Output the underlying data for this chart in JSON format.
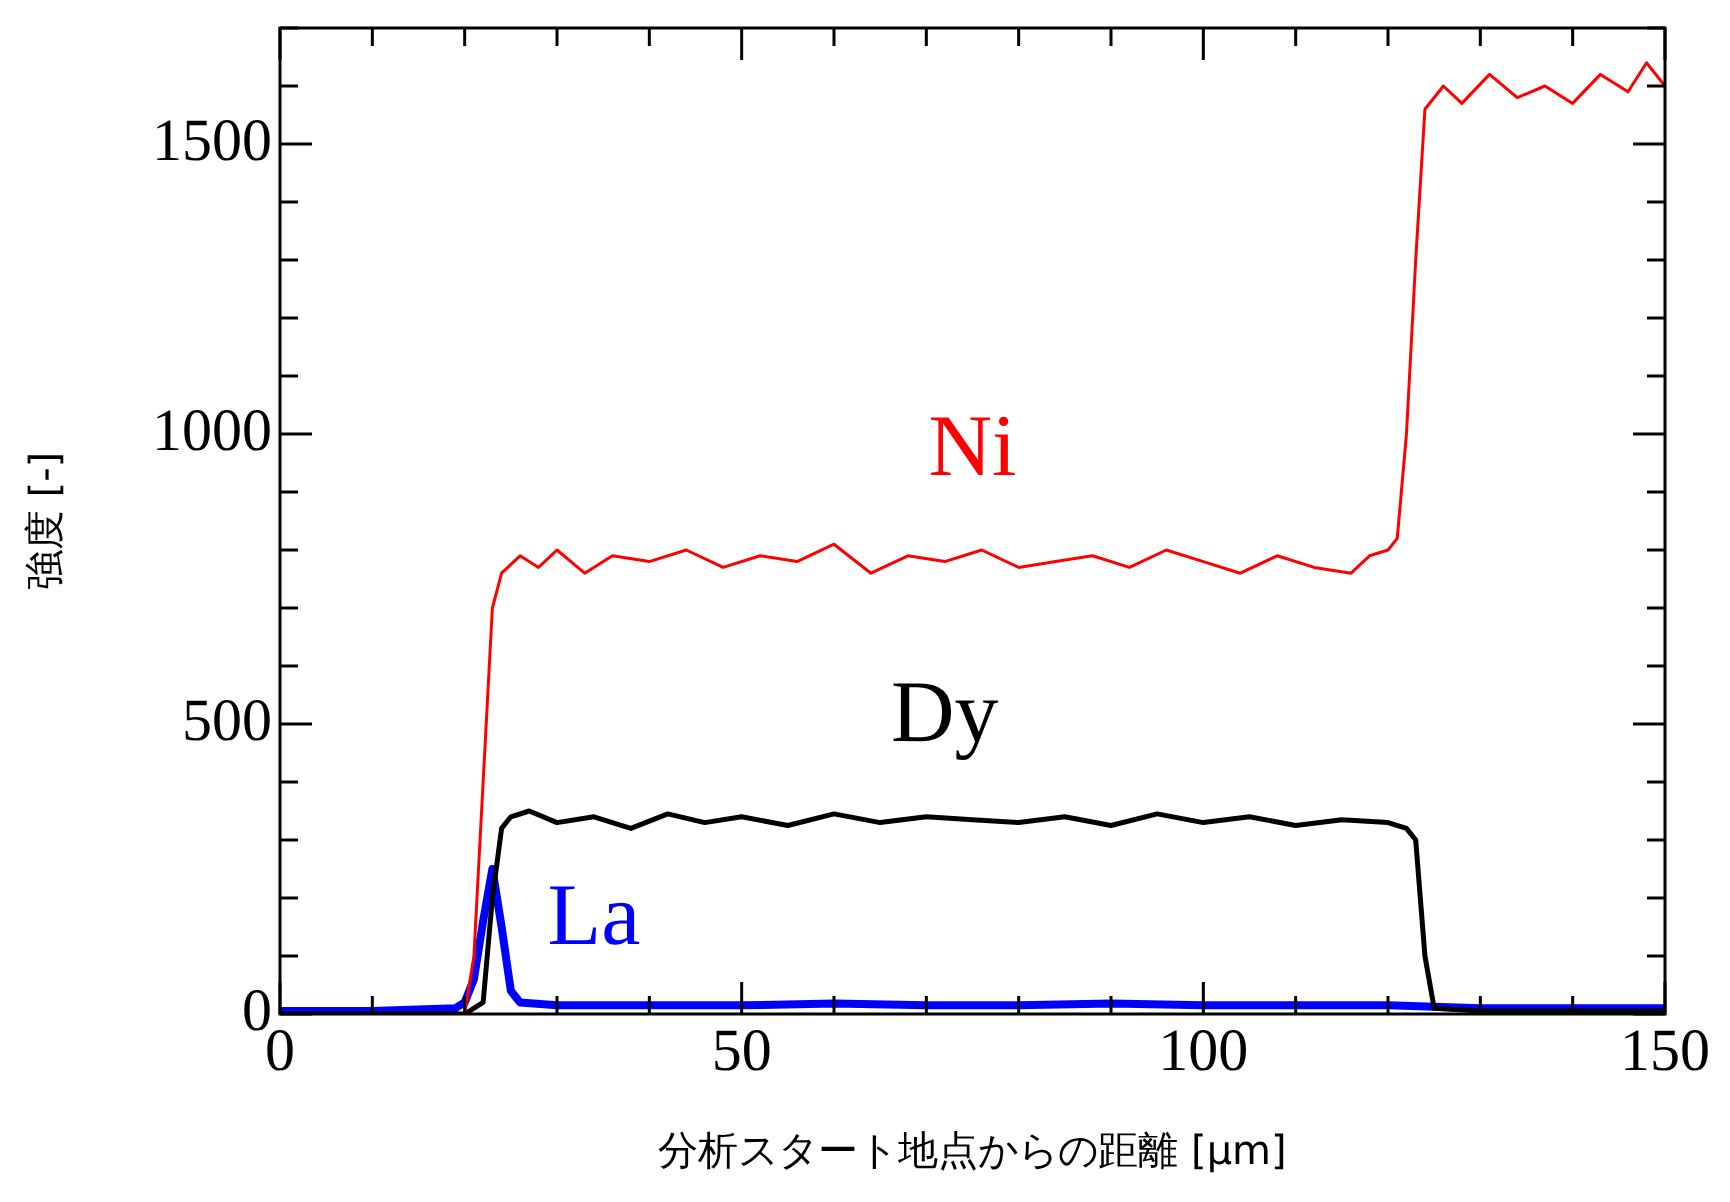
{
  "chart_data": {
    "type": "line",
    "xlabel": "分析スタート地点からの距離 [μm]",
    "ylabel": "強度 [-]",
    "xlim": [
      0,
      150
    ],
    "ylim": [
      0,
      1700
    ],
    "xticks": [
      0,
      {
        "value": 10,
        "label": null
      },
      {
        "value": 20,
        "label": null
      },
      {
        "value": 30,
        "label": null
      },
      {
        "value": 40,
        "label": null
      },
      50,
      {
        "value": 60,
        "label": null
      },
      {
        "value": 70,
        "label": null
      },
      {
        "value": 80,
        "label": null
      },
      {
        "value": 90,
        "label": null
      },
      100,
      {
        "value": 110,
        "label": null
      },
      {
        "value": 120,
        "label": null
      },
      {
        "value": 130,
        "label": null
      },
      {
        "value": 140,
        "label": null
      },
      150
    ],
    "yticks": [
      0,
      {
        "value": 100,
        "label": null
      },
      {
        "value": 200,
        "label": null
      },
      {
        "value": 300,
        "label": null
      },
      {
        "value": 400,
        "label": null
      },
      500,
      {
        "value": 600,
        "label": null
      },
      {
        "value": 700,
        "label": null
      },
      {
        "value": 800,
        "label": null
      },
      {
        "value": 900,
        "label": null
      },
      1000,
      {
        "value": 1100,
        "label": null
      },
      {
        "value": 1200,
        "label": null
      },
      {
        "value": 1300,
        "label": null
      },
      {
        "value": 1400,
        "label": null
      },
      1500,
      {
        "value": 1600,
        "label": null
      },
      {
        "value": 1700,
        "label": null
      }
    ],
    "grid": false,
    "legend": false,
    "marker": "none",
    "line_style": "solid",
    "series": [
      {
        "name": "Ni",
        "color": "#ff0000",
        "x": [
          20,
          21,
          22,
          23,
          24,
          26,
          28,
          30,
          33,
          36,
          40,
          44,
          48,
          52,
          56,
          60,
          64,
          68,
          72,
          76,
          80,
          84,
          88,
          92,
          96,
          100,
          104,
          108,
          112,
          116,
          118,
          120,
          121,
          122,
          123,
          124,
          126,
          128,
          131,
          134,
          137,
          140,
          143,
          146,
          148,
          150
        ],
        "values": [
          0,
          100,
          400,
          700,
          760,
          790,
          770,
          800,
          760,
          790,
          780,
          800,
          770,
          790,
          780,
          810,
          760,
          790,
          780,
          800,
          770,
          780,
          790,
          770,
          800,
          780,
          760,
          790,
          770,
          760,
          790,
          800,
          820,
          1000,
          1300,
          1560,
          1600,
          1570,
          1620,
          1580,
          1600,
          1570,
          1620,
          1590,
          1640,
          1600
        ]
      },
      {
        "name": "Dy",
        "color": "#000000",
        "x": [
          0,
          10,
          20,
          22,
          23,
          24,
          25,
          27,
          30,
          34,
          38,
          42,
          46,
          50,
          55,
          60,
          65,
          70,
          75,
          80,
          85,
          90,
          95,
          100,
          105,
          110,
          115,
          120,
          122,
          123,
          124,
          125,
          130,
          140,
          150
        ],
        "values": [
          0,
          0,
          0,
          20,
          200,
          320,
          340,
          350,
          330,
          340,
          320,
          345,
          330,
          340,
          325,
          345,
          330,
          340,
          335,
          330,
          340,
          325,
          345,
          330,
          340,
          325,
          335,
          330,
          320,
          300,
          100,
          10,
          5,
          5,
          5
        ]
      },
      {
        "name": "La",
        "color": "#0000ff",
        "x": [
          0,
          10,
          19,
          20,
          21,
          22,
          23,
          24,
          25,
          26,
          30,
          40,
          50,
          60,
          70,
          80,
          90,
          100,
          110,
          120,
          130,
          140,
          150
        ],
        "values": [
          5,
          5,
          10,
          20,
          60,
          160,
          250,
          150,
          40,
          20,
          15,
          15,
          15,
          18,
          15,
          15,
          18,
          15,
          15,
          15,
          10,
          10,
          10
        ]
      }
    ]
  }
}
